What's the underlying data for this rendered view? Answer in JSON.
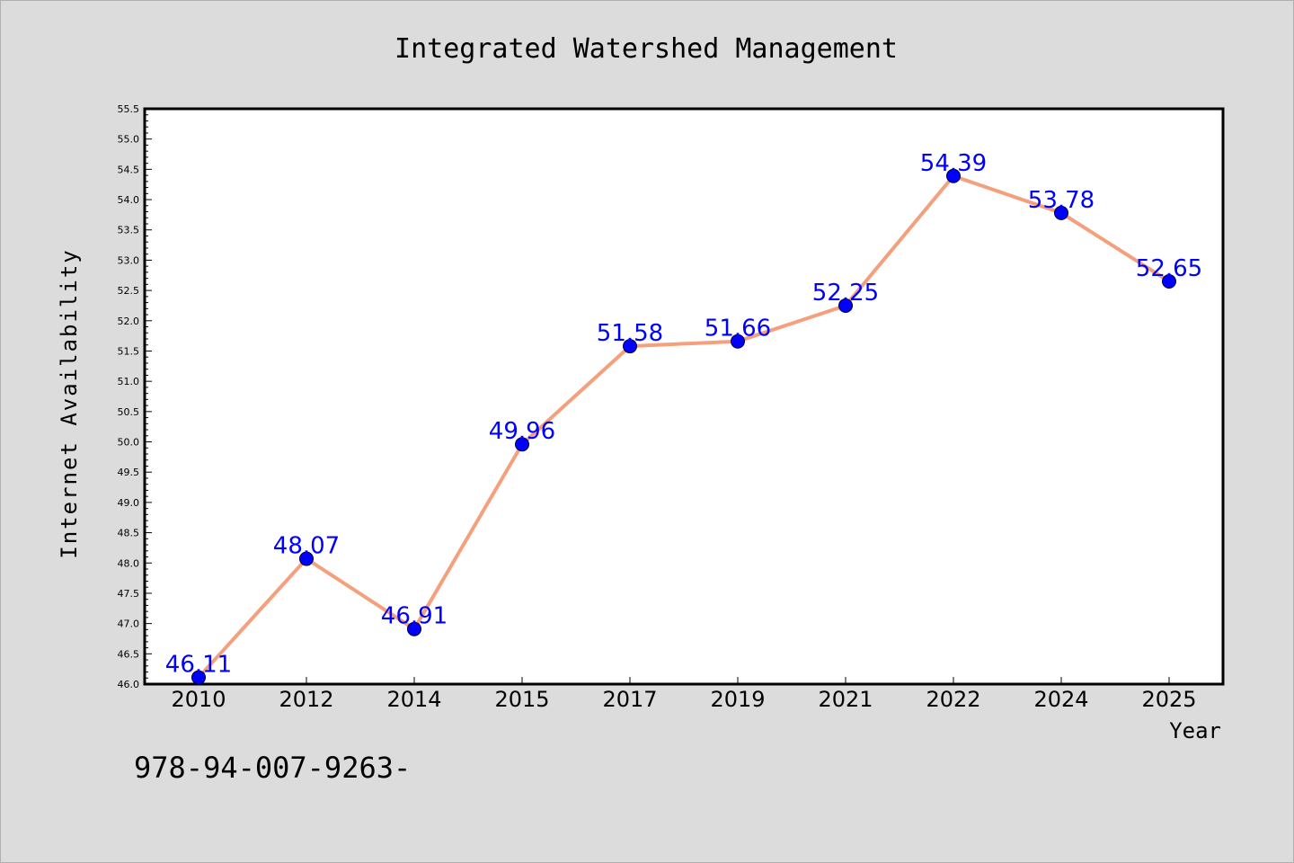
{
  "chart_data": {
    "type": "line",
    "title": "Integrated Watershed Management",
    "xlabel": "Year",
    "ylabel": "Internet Availability",
    "categories": [
      "2010",
      "2012",
      "2014",
      "2015",
      "2017",
      "2019",
      "2021",
      "2022",
      "2024",
      "2025"
    ],
    "series": [
      {
        "values": [
          46.11,
          48.07,
          46.91,
          49.96,
          51.58,
          51.66,
          52.25,
          54.39,
          53.78,
          52.65
        ],
        "data_labels": [
          "46.11",
          "48.07",
          "46.91",
          "49.96",
          "51.58",
          "51.66",
          "52.25",
          "54.39",
          "53.78",
          "52.65"
        ],
        "line_color": "#f4a07c",
        "marker_color": "#0000ff"
      }
    ],
    "ylim": [
      46.0,
      55.5
    ],
    "ytick_step": 0.5,
    "ytick_labels": [
      "46.0",
      "46.5",
      "47.0",
      "47.5",
      "48.0",
      "48.5",
      "49.0",
      "49.5",
      "50.0",
      "50.5",
      "51.0",
      "51.5",
      "52.0",
      "52.5",
      "53.0",
      "53.5",
      "54.0",
      "54.5",
      "55.0",
      "55.5"
    ],
    "grid": false,
    "legend": "none"
  },
  "footer": {
    "text": "978-94-007-9263-"
  },
  "colors": {
    "background": "#dcdcdc",
    "plot_background": "#ffffff",
    "line": "#f4a07c",
    "marker": "#0000ff",
    "data_label": "#0000ff"
  }
}
